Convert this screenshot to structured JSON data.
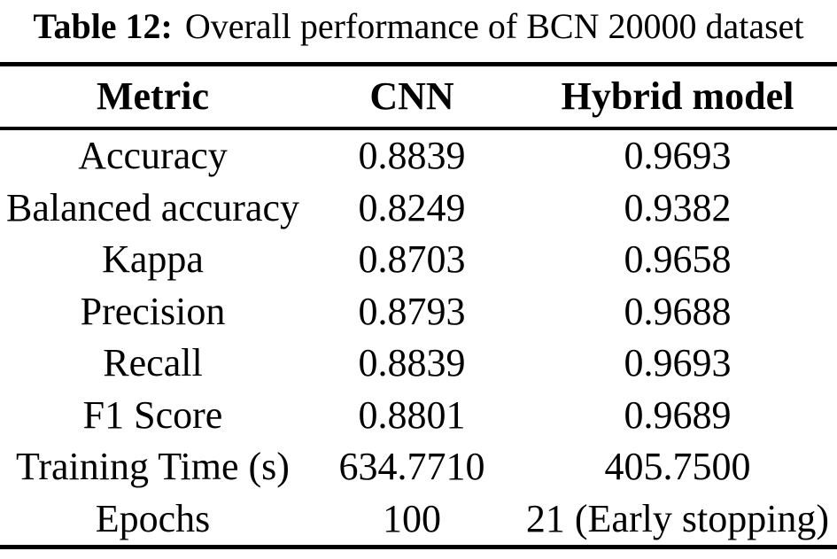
{
  "title": {
    "label": "Table 12:",
    "caption": "Overall performance of BCN 20000 dataset"
  },
  "table": {
    "columns": [
      "Metric",
      "CNN",
      "Hybrid model"
    ],
    "rows": [
      {
        "metric": "Accuracy",
        "cnn": "0.8839",
        "hybrid": "0.9693"
      },
      {
        "metric": "Balanced accuracy",
        "cnn": "0.8249",
        "hybrid": "0.9382"
      },
      {
        "metric": "Kappa",
        "cnn": "0.8703",
        "hybrid": "0.9658"
      },
      {
        "metric": "Precision",
        "cnn": "0.8793",
        "hybrid": "0.9688"
      },
      {
        "metric": "Recall",
        "cnn": "0.8839",
        "hybrid": "0.9693"
      },
      {
        "metric": "F1 Score",
        "cnn": "0.8801",
        "hybrid": "0.9689"
      },
      {
        "metric": "Training Time (s)",
        "cnn": "634.7710",
        "hybrid": "405.7500"
      },
      {
        "metric": "Epochs",
        "cnn": "100",
        "hybrid": "21 (Early stopping)"
      }
    ]
  }
}
